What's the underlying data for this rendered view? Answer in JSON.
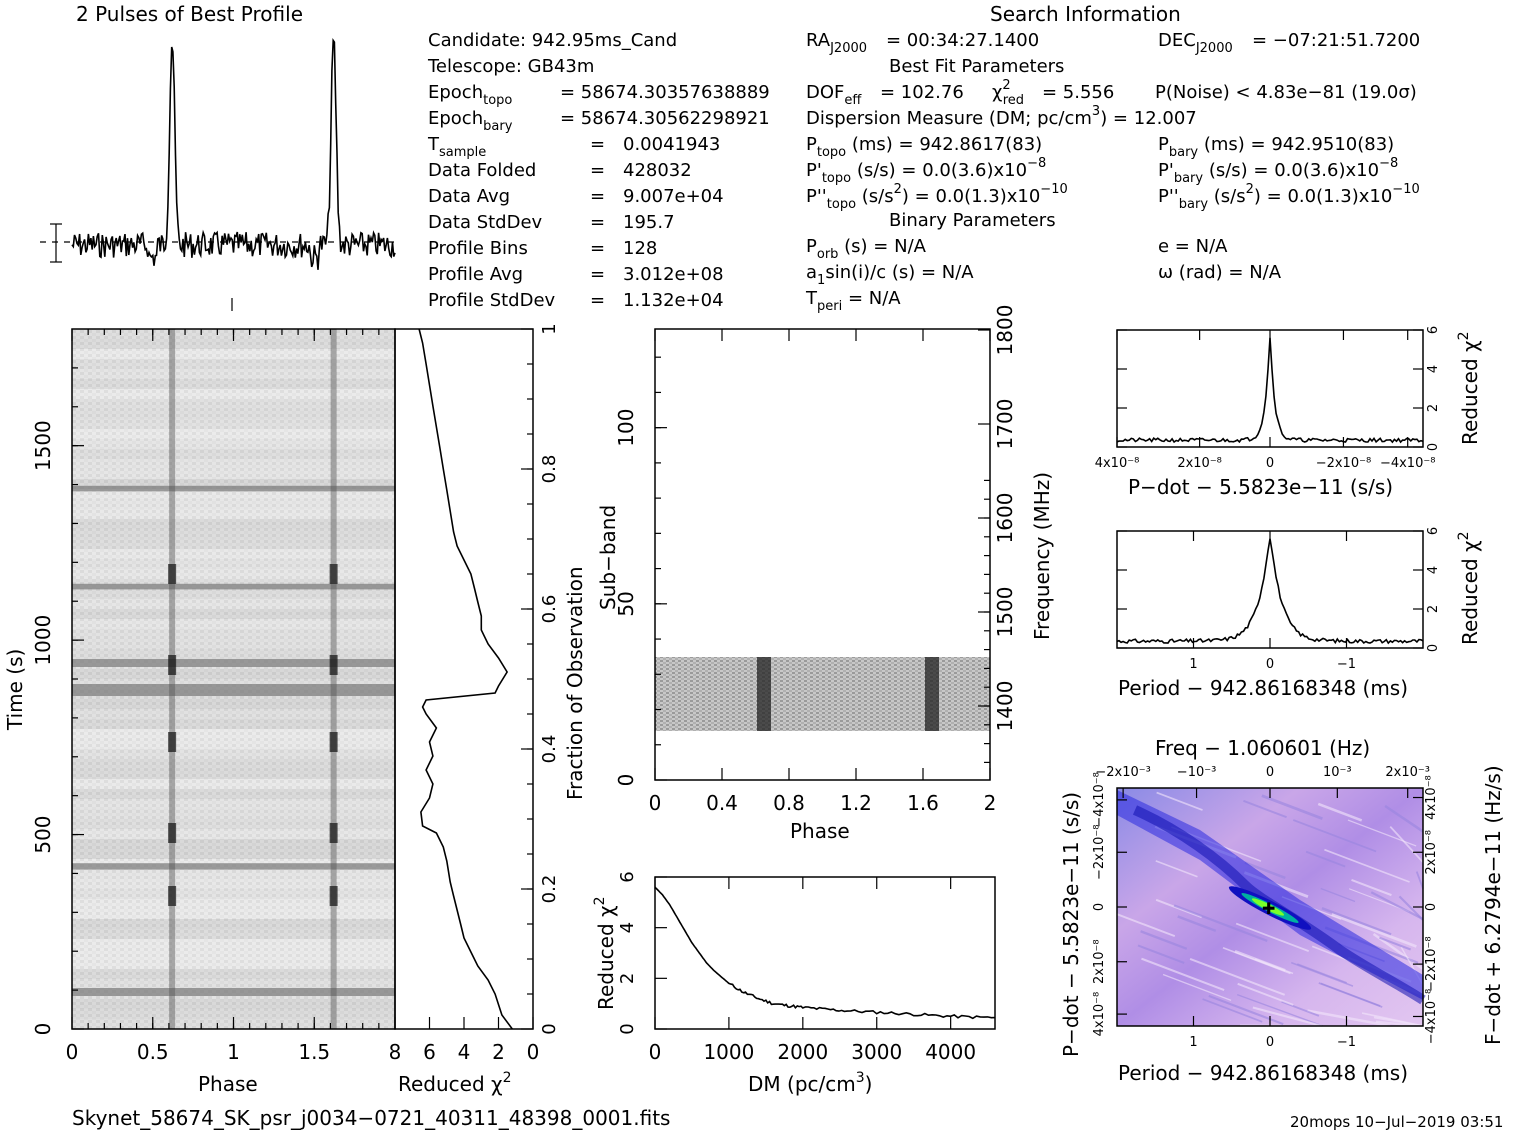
{
  "titles": {
    "profile": "2 Pulses of Best Profile",
    "search": "Search Information"
  },
  "info_left": {
    "candidate": "Candidate:  942.95ms_Cand",
    "telescope": "Telescope:  GB43m",
    "epoch_topo": "= 58674.30357638889",
    "epoch_bary": "= 58674.30562298921",
    "rows": [
      {
        "label": "T",
        "sub": "sample",
        "value": "0.0041943"
      },
      {
        "label": "Data Folded",
        "sub": "",
        "value": "428032"
      },
      {
        "label": "Data Avg",
        "sub": "",
        "value": "9.007e+04"
      },
      {
        "label": "Data StdDev",
        "sub": "",
        "value": "195.7"
      },
      {
        "label": "Profile Bins",
        "sub": "",
        "value": "128"
      },
      {
        "label": "Profile Avg",
        "sub": "",
        "value": "3.012e+08"
      },
      {
        "label": "Profile StdDev",
        "sub": "",
        "value": "1.132e+04"
      }
    ]
  },
  "info_mid": {
    "ra": "= 00:34:27.1400",
    "dec": "= −07:21:51.7200",
    "best_fit_title": "Best Fit Parameters",
    "dof": "DOF",
    "dof_val": "= 102.76",
    "chi2_val": "= 5.556",
    "pnoise": "P(Noise) < 4.83e−81   (19.0σ)",
    "dm": "Dispersion Measure (DM; pc/cm",
    "dm_val": ") = 12.007",
    "ptopo": "(ms) =   942.8617(83)",
    "pbary": "(ms) =   942.9510(83)",
    "pdtopo": "(s/s) = 0.0(3.6)x10",
    "pdbary": "(s/s) = 0.0(3.6)x10",
    "pddtopo": "(s/s",
    "pddtopo_val": ") = 0.0(1.3)x10",
    "pddbary": "(s/s",
    "pddbary_val": ") = 0.0(1.3)x10",
    "binary_title": "Binary Parameters",
    "porb": "(s) = N/A",
    "a1": "a",
    "a1_rest": "sin(i)/c (s) = N/A",
    "tperi": "= N/A",
    "ecc": "e = N/A",
    "omega": "ω (rad) = N/A"
  },
  "labels": {
    "phase": "Phase",
    "reduced_chi2": "Reduced χ",
    "time": "Time (s)",
    "fraction_obs": "Fraction of Observation",
    "sub_band": "Sub−band",
    "frequency": "Frequency (MHz)",
    "dm_axis": "DM (pc/cm",
    "pdot_label": "P−dot − 5.5823e−11 (s/s)",
    "period_label": "Period − 942.86168348 (ms)",
    "freq_label": "Freq − 1.060601 (Hz)",
    "pdot_side": "P−dot − 5.5823e−11 (s/s)",
    "fdot_side": "F−dot + 6.2794e−11 (Hz/s)"
  },
  "footer": {
    "filename": "Skynet_58674_SK_psr_j0034−0721_40311_48398_0001.fits",
    "stamp": "20mops 10−Jul−2019 03:51"
  },
  "chart_data": [
    {
      "name": "profile",
      "type": "line",
      "title": "2 Pulses of Best Profile",
      "xlim": [
        0,
        2
      ],
      "peaks_phase": [
        0.62,
        1.62
      ]
    },
    {
      "name": "time_phase",
      "type": "heatmap",
      "xlabel": "Phase",
      "ylabel": "Time (s)",
      "xlim": [
        0,
        2
      ],
      "ylim": [
        0,
        1800
      ],
      "xticks": [
        "0",
        "0.5",
        "1",
        "1.5"
      ],
      "yticks": [
        "0",
        "500",
        "1000",
        "1500"
      ]
    },
    {
      "name": "time_chi2",
      "type": "line",
      "xlabel": "Reduced χ²",
      "xlim": [
        8,
        0
      ],
      "ylim": [
        0,
        1
      ],
      "xticks": [
        "8",
        "6",
        "4",
        "2",
        "0"
      ],
      "yticks": [
        "0",
        "0.2",
        "0.4",
        "0.6",
        "0.8",
        "1"
      ],
      "points": [
        [
          1.2,
          0
        ],
        [
          1.8,
          0.02
        ],
        [
          2.2,
          0.05
        ],
        [
          2.6,
          0.07
        ],
        [
          3.2,
          0.09
        ],
        [
          3.6,
          0.11
        ],
        [
          4.0,
          0.13
        ],
        [
          4.2,
          0.15
        ],
        [
          4.4,
          0.17
        ],
        [
          4.6,
          0.19
        ],
        [
          4.8,
          0.21
        ],
        [
          5.0,
          0.24
        ],
        [
          5.2,
          0.26
        ],
        [
          5.6,
          0.28
        ],
        [
          6.4,
          0.29
        ],
        [
          6.5,
          0.31
        ],
        [
          6.0,
          0.33
        ],
        [
          5.8,
          0.35
        ],
        [
          6.2,
          0.37
        ],
        [
          5.8,
          0.39
        ],
        [
          6.0,
          0.41
        ],
        [
          5.6,
          0.43
        ],
        [
          6.2,
          0.45
        ],
        [
          6.4,
          0.46
        ],
        [
          6.2,
          0.47
        ],
        [
          2.2,
          0.48
        ],
        [
          2.0,
          0.49
        ],
        [
          1.5,
          0.51
        ],
        [
          2.0,
          0.53
        ],
        [
          2.6,
          0.55
        ],
        [
          3.0,
          0.57
        ],
        [
          3.0,
          0.59
        ],
        [
          3.2,
          0.61
        ],
        [
          3.4,
          0.63
        ],
        [
          3.6,
          0.65
        ],
        [
          4.0,
          0.67
        ],
        [
          4.4,
          0.69
        ],
        [
          4.6,
          0.71
        ],
        [
          4.8,
          0.74
        ],
        [
          5.0,
          0.77
        ],
        [
          5.2,
          0.8
        ],
        [
          5.4,
          0.83
        ],
        [
          5.6,
          0.86
        ],
        [
          5.8,
          0.89
        ],
        [
          6.0,
          0.92
        ],
        [
          6.2,
          0.95
        ],
        [
          6.4,
          0.98
        ],
        [
          6.6,
          1.0
        ]
      ]
    },
    {
      "name": "subband_phase",
      "type": "heatmap",
      "xlabel": "Phase",
      "ylabel": "Sub−band",
      "xlim": [
        0,
        2
      ],
      "ylim": [
        0,
        128
      ],
      "xticks": [
        "0",
        "0.4",
        "0.8",
        "1.2",
        "1.6",
        "2"
      ],
      "yticks": [
        "0",
        "50",
        "100"
      ],
      "freq_ticks": [
        "1400",
        "1500",
        "1600",
        "1700",
        "1800"
      ],
      "data_band": [
        14,
        35
      ],
      "peaks_phase": [
        0.63,
        1.63
      ]
    },
    {
      "name": "dm_chi2",
      "type": "line",
      "xlabel": "DM (pc/cm³)",
      "ylabel": "Reduced χ²",
      "xlim": [
        0,
        4600
      ],
      "ylim": [
        0,
        6
      ],
      "xticks": [
        "0",
        "1000",
        "2000",
        "3000",
        "4000"
      ],
      "yticks": [
        "0",
        "2",
        "4",
        "6"
      ],
      "points": [
        [
          0,
          5.6
        ],
        [
          100,
          5.3
        ],
        [
          200,
          4.9
        ],
        [
          300,
          4.4
        ],
        [
          400,
          3.9
        ],
        [
          500,
          3.4
        ],
        [
          600,
          3.0
        ],
        [
          700,
          2.6
        ],
        [
          800,
          2.3
        ],
        [
          900,
          2.05
        ],
        [
          1000,
          1.8
        ],
        [
          1200,
          1.45
        ],
        [
          1400,
          1.2
        ],
        [
          1600,
          1.0
        ],
        [
          1800,
          0.92
        ],
        [
          2000,
          0.85
        ],
        [
          2300,
          0.78
        ],
        [
          2600,
          0.72
        ],
        [
          3000,
          0.66
        ],
        [
          3400,
          0.6
        ],
        [
          3800,
          0.53
        ],
        [
          4200,
          0.48
        ],
        [
          4600,
          0.45
        ]
      ]
    },
    {
      "name": "pdot_chi2",
      "type": "line",
      "xlabel": "P−dot − 5.5823e−11 (s/s)",
      "ylabel": "Reduced χ²",
      "xlim": [
        4.4e-08,
        -4.4e-08
      ],
      "ylim": [
        0,
        6
      ],
      "xticks": [
        "4x10⁻⁸",
        "2x10⁻⁸",
        "0",
        "−2x10⁻⁸",
        "−4x10⁻⁸"
      ],
      "yticks": [
        "0",
        "2",
        "4",
        "6"
      ],
      "peak": 5.6
    },
    {
      "name": "period_chi2",
      "type": "line",
      "xlabel": "Period − 942.86168348 (ms)",
      "ylabel": "Reduced χ²",
      "xlim": [
        2,
        -2
      ],
      "ylim": [
        0,
        6
      ],
      "xticks": [
        "1",
        "0",
        "−1"
      ],
      "yticks": [
        "0",
        "2",
        "4",
        "6"
      ],
      "peak": 5.6
    },
    {
      "name": "p_pdot",
      "type": "heatmap",
      "xlabel": "Period − 942.86168348 (ms)",
      "ylabel": "P−dot − 5.5823e−11 (s/s)",
      "xticks": [
        "1",
        "0",
        "−1"
      ],
      "yticks": [
        "4x10⁻⁸",
        "2x10⁻⁸",
        "0",
        "−2x10⁻⁸",
        "−4x10⁻⁸"
      ],
      "top_ticks": [
        "−2x10⁻³",
        "−10⁻³",
        "0",
        "10⁻³",
        "2x10⁻³"
      ],
      "right_ticks": [
        "−4x10⁻⁸",
        "−2x10⁻⁸",
        "0",
        "2x10⁻⁸",
        "4x10⁻⁸"
      ]
    }
  ]
}
